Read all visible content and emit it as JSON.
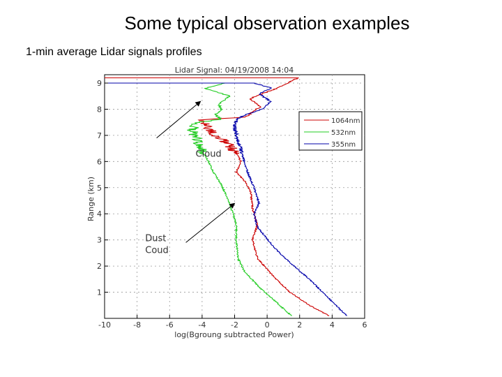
{
  "slide": {
    "title": "Some typical observation examples",
    "subtitle": "1-min average Lidar  signals profiles"
  },
  "chart_data": {
    "type": "line",
    "title": "Lidar Signal: 04/19/2008 14:04",
    "xlabel": "log(Bgroung subtracted Power)",
    "ylabel": "Range (km)",
    "xlim": [
      -10,
      6
    ],
    "ylim": [
      0,
      9
    ],
    "xticks": [
      -10,
      -8,
      -6,
      -4,
      -2,
      0,
      2,
      4,
      6
    ],
    "yticks": [
      1,
      2,
      3,
      4,
      5,
      6,
      7,
      8,
      9
    ],
    "xtick_labels": [
      "-10",
      "-8",
      "-6",
      "-4",
      "-2",
      "0",
      "2",
      "4",
      "6"
    ],
    "ytick_labels": [
      "1",
      "2",
      "3",
      "4",
      "5",
      "6",
      "7",
      "8",
      "9"
    ],
    "grid": true,
    "legend_position": "top-right",
    "series": [
      {
        "name": "1064nm",
        "color": "#cc0000",
        "points": [
          [
            3.8,
            0.1
          ],
          [
            2.6,
            0.5
          ],
          [
            1.4,
            1.0
          ],
          [
            0.4,
            1.6
          ],
          [
            -0.6,
            2.3
          ],
          [
            -0.9,
            3.0
          ],
          [
            -0.6,
            3.6
          ],
          [
            -0.9,
            4.2
          ],
          [
            -1.0,
            4.8
          ],
          [
            -1.3,
            5.2
          ],
          [
            -1.9,
            5.6
          ],
          [
            -1.6,
            6.0
          ],
          [
            -1.9,
            6.3
          ],
          [
            -2.6,
            6.8
          ],
          [
            -3.2,
            7.0
          ],
          [
            -3.6,
            7.3
          ],
          [
            -3.9,
            7.6
          ],
          [
            -1.3,
            7.7
          ],
          [
            -0.9,
            7.9
          ],
          [
            -0.4,
            8.1
          ],
          [
            -1.1,
            8.4
          ],
          [
            0.6,
            8.8
          ],
          [
            1.9,
            9.2
          ]
        ]
      },
      {
        "name": "532nm",
        "color": "#22cc22",
        "points": [
          [
            1.5,
            0.1
          ],
          [
            0.6,
            0.6
          ],
          [
            -0.5,
            1.2
          ],
          [
            -1.4,
            1.8
          ],
          [
            -1.8,
            2.3
          ],
          [
            -1.9,
            3.0
          ],
          [
            -1.9,
            3.6
          ],
          [
            -2.3,
            4.4
          ],
          [
            -2.8,
            5.1
          ],
          [
            -3.3,
            5.6
          ],
          [
            -3.6,
            6.0
          ],
          [
            -4.1,
            6.5
          ],
          [
            -4.3,
            6.8
          ],
          [
            -4.6,
            7.2
          ],
          [
            -4.3,
            7.5
          ],
          [
            -2.8,
            7.6
          ],
          [
            -3.2,
            7.8
          ],
          [
            -2.8,
            8.0
          ],
          [
            -3.0,
            8.2
          ],
          [
            -2.3,
            8.5
          ],
          [
            -3.8,
            8.8
          ],
          [
            -2.6,
            9.0
          ]
        ]
      },
      {
        "name": "355nm",
        "color": "#0000aa",
        "points": [
          [
            4.9,
            0.1
          ],
          [
            3.9,
            0.7
          ],
          [
            2.6,
            1.5
          ],
          [
            1.1,
            2.3
          ],
          [
            0.3,
            2.8
          ],
          [
            -0.6,
            3.5
          ],
          [
            -0.8,
            4.0
          ],
          [
            -0.5,
            4.4
          ],
          [
            -0.8,
            5.0
          ],
          [
            -1.2,
            5.6
          ],
          [
            -1.5,
            6.2
          ],
          [
            -1.8,
            6.8
          ],
          [
            -2.0,
            7.3
          ],
          [
            -1.9,
            7.6
          ],
          [
            -1.3,
            7.8
          ],
          [
            -0.3,
            8.0
          ],
          [
            0.2,
            8.3
          ],
          [
            -0.5,
            8.6
          ],
          [
            0.3,
            8.8
          ],
          [
            -0.8,
            9.0
          ]
        ]
      }
    ],
    "noisy_band": {
      "y_from": 6.3,
      "y_to": 7.6
    },
    "annotations": [
      {
        "text": "Cloud",
        "text_x": -4.4,
        "text_y": 6.18,
        "arrow_from": [
          -6.8,
          6.9
        ],
        "arrow_to": [
          -4.1,
          8.3
        ]
      },
      {
        "lines": [
          "Dust",
          "Coud"
        ],
        "text_x": -7.5,
        "text_y": 2.95,
        "arrow_from": [
          -5.0,
          2.9
        ],
        "arrow_to": [
          -2.0,
          4.4
        ]
      }
    ]
  }
}
